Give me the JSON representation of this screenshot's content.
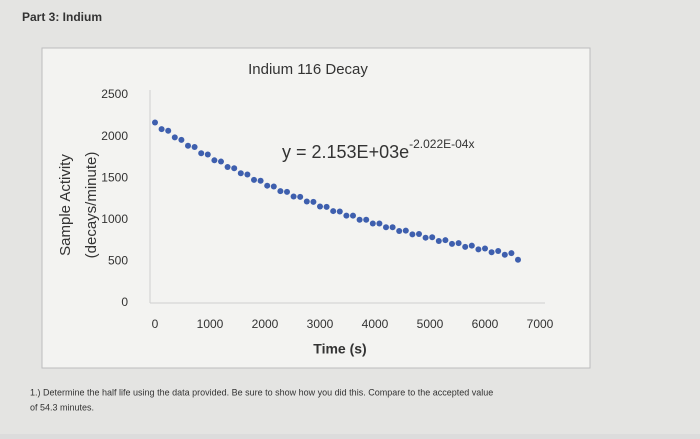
{
  "header": {
    "title": "Part 3: Indium"
  },
  "chart_data": {
    "type": "scatter",
    "title": "Indium 116 Decay",
    "ylabel": [
      "Sample Activity",
      "(decays/minute)"
    ],
    "xlabel": "Time (s)",
    "trendline_equation": {
      "base": "y = 2.153E+03e",
      "exponent": "-2.022E-04x"
    },
    "color": "#3e5fae",
    "x": [
      0,
      120,
      240,
      360,
      480,
      600,
      720,
      840,
      960,
      1080,
      1200,
      1320,
      1440,
      1560,
      1680,
      1800,
      1920,
      2040,
      2160,
      2280,
      2400,
      2520,
      2640,
      2760,
      2880,
      3000,
      3120,
      3240,
      3360,
      3480,
      3600,
      3720,
      3840,
      3960,
      4080,
      4200,
      4320,
      4440,
      4560,
      4680,
      4800,
      4920,
      5040,
      5160,
      5280,
      5400,
      5520,
      5640,
      5760,
      5880,
      6000,
      6120,
      6240,
      6360,
      6480,
      6600
    ],
    "values": [
      2170,
      2090,
      2070,
      1990,
      1960,
      1890,
      1875,
      1800,
      1785,
      1715,
      1700,
      1635,
      1620,
      1560,
      1545,
      1480,
      1470,
      1410,
      1400,
      1345,
      1335,
      1280,
      1275,
      1220,
      1215,
      1160,
      1155,
      1105,
      1100,
      1050,
      1050,
      1000,
      1000,
      955,
      955,
      910,
      910,
      865,
      870,
      825,
      830,
      785,
      790,
      745,
      755,
      710,
      720,
      675,
      690,
      645,
      655,
      610,
      625,
      580,
      600,
      520
    ],
    "xlim": [
      0,
      7000
    ],
    "xticks": [
      0,
      1000,
      2000,
      3000,
      4000,
      5000,
      6000,
      7000
    ],
    "ylim": [
      0,
      2500
    ],
    "yticks": [
      0,
      500,
      1000,
      1500,
      2000,
      2500
    ]
  },
  "question": {
    "lines": [
      "1.) Determine the half life using the data provided. Be sure to show how you did this. Compare to the accepted value",
      "of 54.3 minutes."
    ]
  }
}
